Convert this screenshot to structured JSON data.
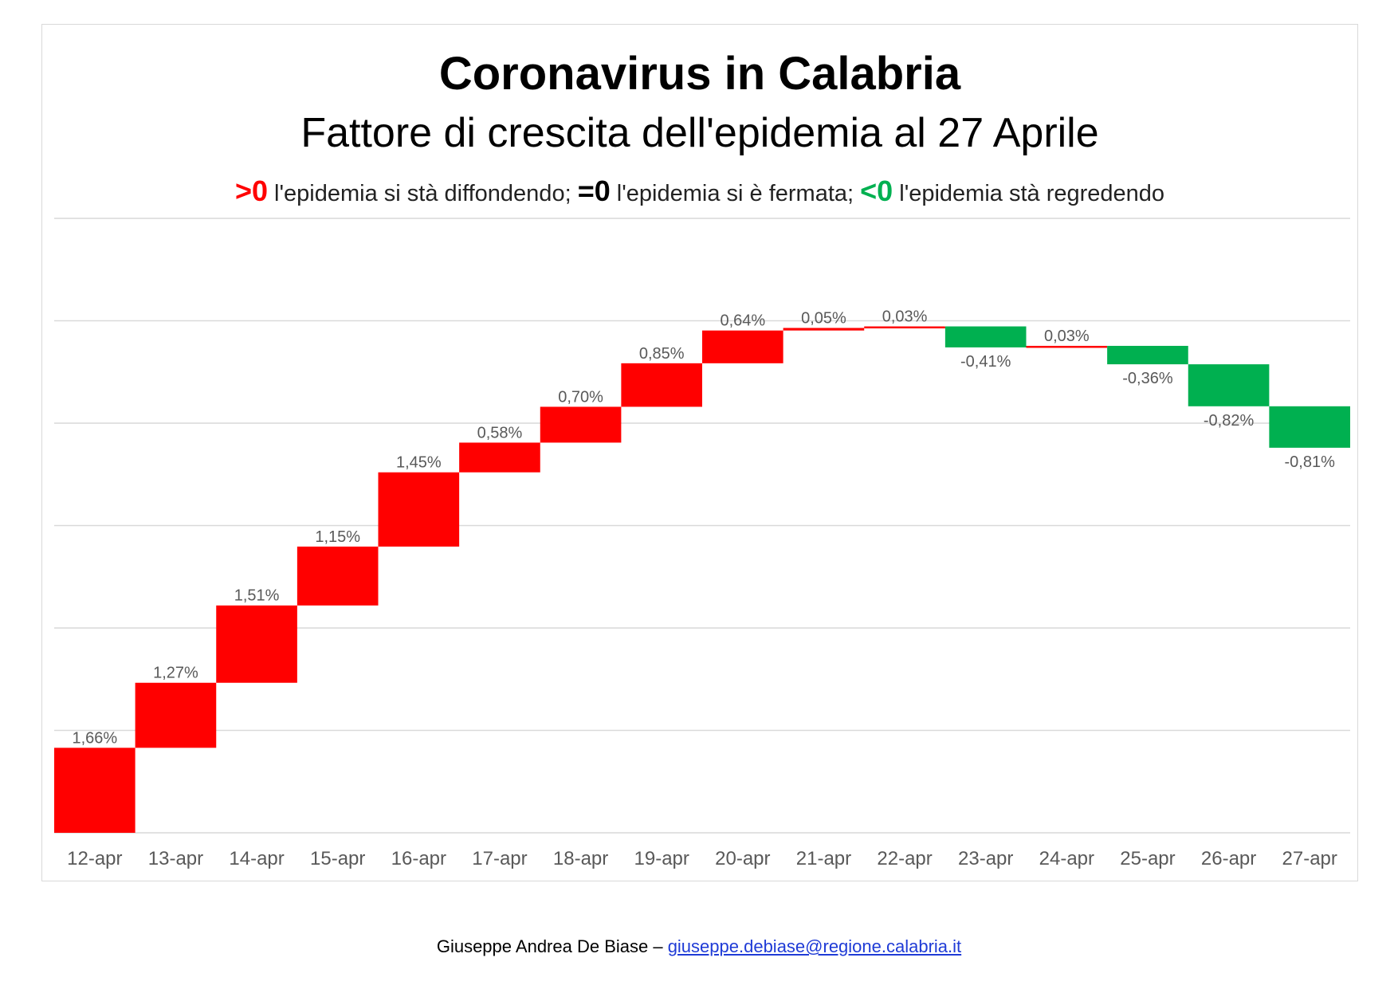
{
  "chart_data": {
    "type": "waterfall",
    "title": "Coronavirus in Calabria",
    "subtitle": "Fattore di crescita dell'epidemia al 27 Aprile",
    "legend": [
      {
        "symbol": ">0",
        "text": " l'epidemia si stà diffondendo; ",
        "color": "#ff0000"
      },
      {
        "symbol": "=0",
        "text": " l'epidemia si è fermata; ",
        "color": "#000000"
      },
      {
        "symbol": "<0",
        "text": " l'epidemia stà regredendo",
        "color": "#00b050"
      }
    ],
    "categories": [
      "12-apr",
      "13-apr",
      "14-apr",
      "15-apr",
      "16-apr",
      "17-apr",
      "18-apr",
      "19-apr",
      "20-apr",
      "21-apr",
      "22-apr",
      "23-apr",
      "24-apr",
      "25-apr",
      "26-apr",
      "27-apr"
    ],
    "values": [
      1.66,
      1.27,
      1.51,
      1.15,
      1.45,
      0.58,
      0.7,
      0.85,
      0.64,
      0.05,
      0.03,
      -0.41,
      0.03,
      -0.36,
      -0.82,
      -0.81
    ],
    "labels": [
      "1,66%",
      "1,27%",
      "1,51%",
      "1,15%",
      "1,45%",
      "0,58%",
      "0,70%",
      "0,85%",
      "0,64%",
      "0,05%",
      "0,03%",
      "-0,41%",
      "0,03%",
      "-0,36%",
      "-0,82%",
      "-0,81%"
    ],
    "unit": "%",
    "ylim": [
      0,
      12
    ],
    "grid": true,
    "colors": {
      "positive": "#ff0000",
      "negative": "#00b050",
      "grid": "#d9d9d9"
    }
  },
  "footer": {
    "author": "Giuseppe Andrea De Biase – ",
    "email": "giuseppe.debiase@regione.calabria.it"
  }
}
